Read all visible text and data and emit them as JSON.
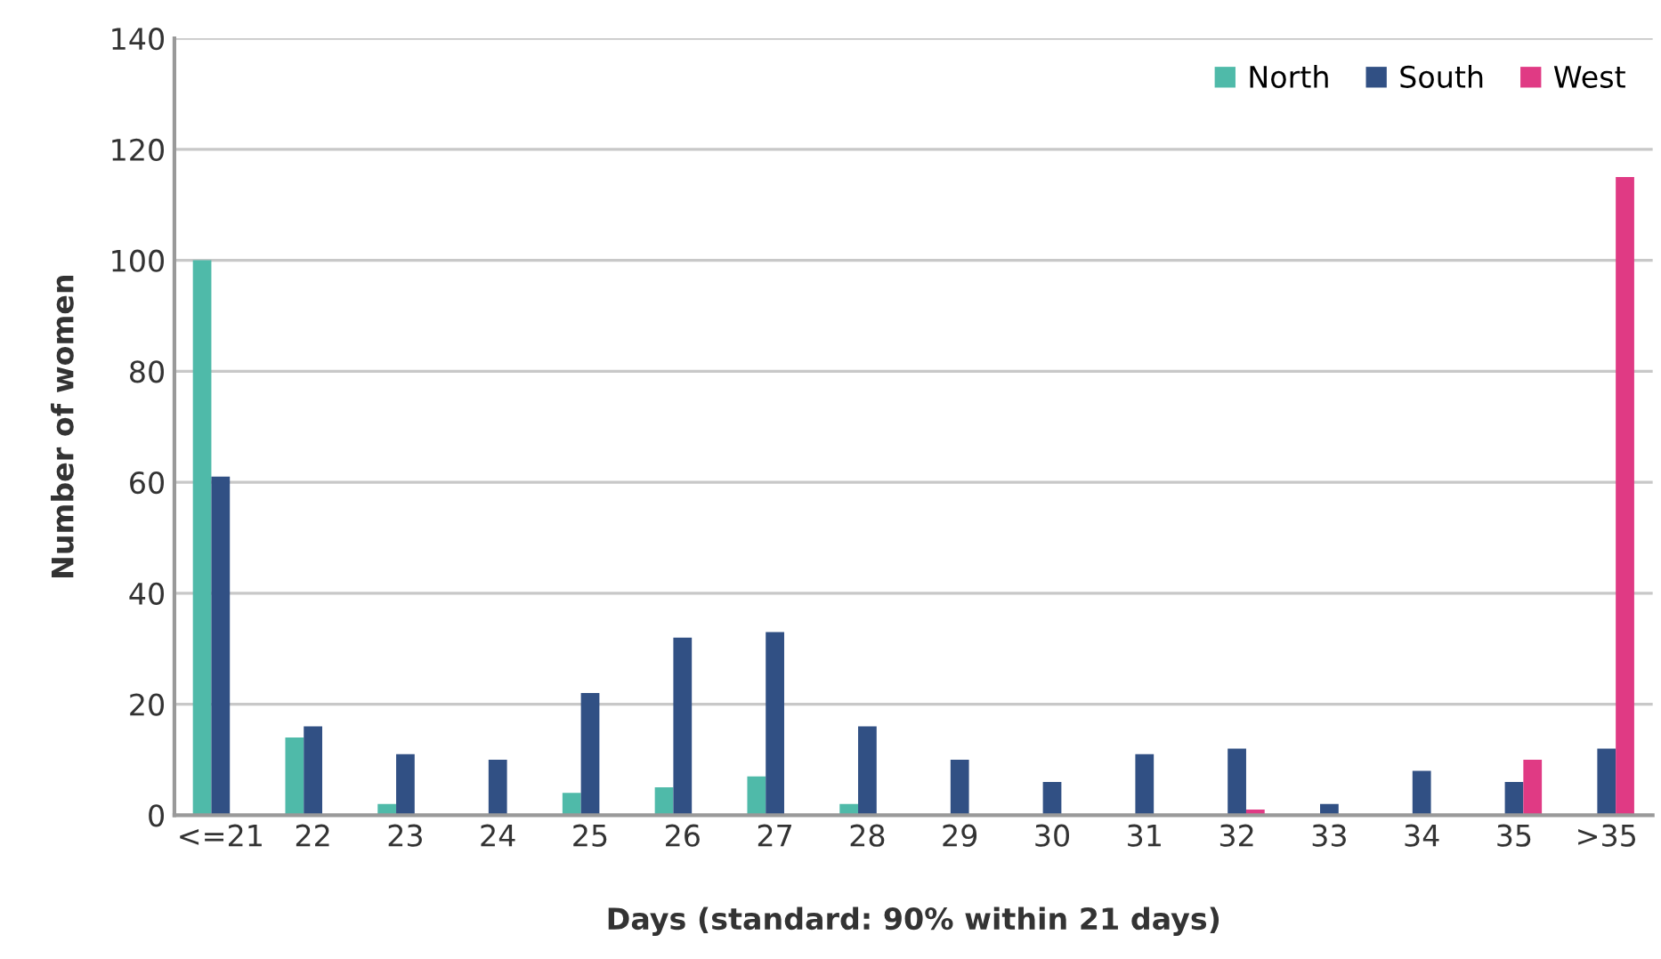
{
  "chart_data": {
    "type": "bar",
    "xlabel": "Days (standard: 90% within 21 days)",
    "ylabel": "Number of women",
    "categories": [
      "<=21",
      "22",
      "23",
      "24",
      "25",
      "26",
      "27",
      "28",
      "29",
      "30",
      "31",
      "32",
      "33",
      "34",
      "35",
      ">35"
    ],
    "series": [
      {
        "name": "North",
        "color": "#4fbaa9",
        "values": [
          100,
          14,
          2,
          0,
          4,
          5,
          7,
          2,
          0,
          0,
          0,
          0,
          0,
          0,
          0,
          0
        ]
      },
      {
        "name": "South",
        "color": "#315084",
        "values": [
          61,
          16,
          11,
          10,
          22,
          32,
          33,
          16,
          10,
          6,
          11,
          12,
          2,
          8,
          6,
          12
        ]
      },
      {
        "name": "West",
        "color": "#e03a84",
        "values": [
          0,
          0,
          0,
          0,
          0,
          0,
          0,
          0,
          0,
          0,
          0,
          1,
          0,
          0,
          10,
          115
        ]
      }
    ],
    "ylim": [
      0,
      140
    ],
    "yticks": [
      0,
      20,
      40,
      60,
      80,
      100,
      120,
      140
    ],
    "grid": "y",
    "legend": "top right"
  }
}
